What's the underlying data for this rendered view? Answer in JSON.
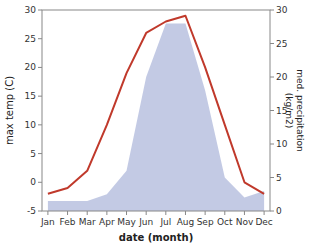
{
  "chart_data": {
    "type": "line",
    "categories": [
      "Jan",
      "Feb",
      "Mar",
      "Apr",
      "May",
      "Jun",
      "Jul",
      "Aug",
      "Sep",
      "Oct",
      "Nov",
      "Dec"
    ],
    "series": [
      {
        "type": "area",
        "color": "#aab4d8",
        "axis": "y2",
        "values": [
          1.5,
          1.5,
          1.5,
          2.5,
          6,
          20,
          28,
          28,
          18,
          5,
          2,
          3
        ]
      },
      {
        "type": "line",
        "color": "#c0392b",
        "values": [
          -2,
          -1,
          2,
          10,
          19,
          26,
          28,
          29,
          20,
          10,
          0,
          -2
        ]
      }
    ],
    "x_label": "date (month)",
    "y_label": "max temp (C)",
    "y2_label": "med. precipitation\n(kg/m2)",
    "ylim": [
      -5,
      30
    ],
    "yticks": [
      -5,
      0,
      5,
      10,
      15,
      20,
      25,
      30
    ],
    "y2lim": [
      0,
      30
    ],
    "y2ticks": [
      0,
      5,
      10,
      15,
      20,
      25,
      30
    ],
    "grid": false
  }
}
